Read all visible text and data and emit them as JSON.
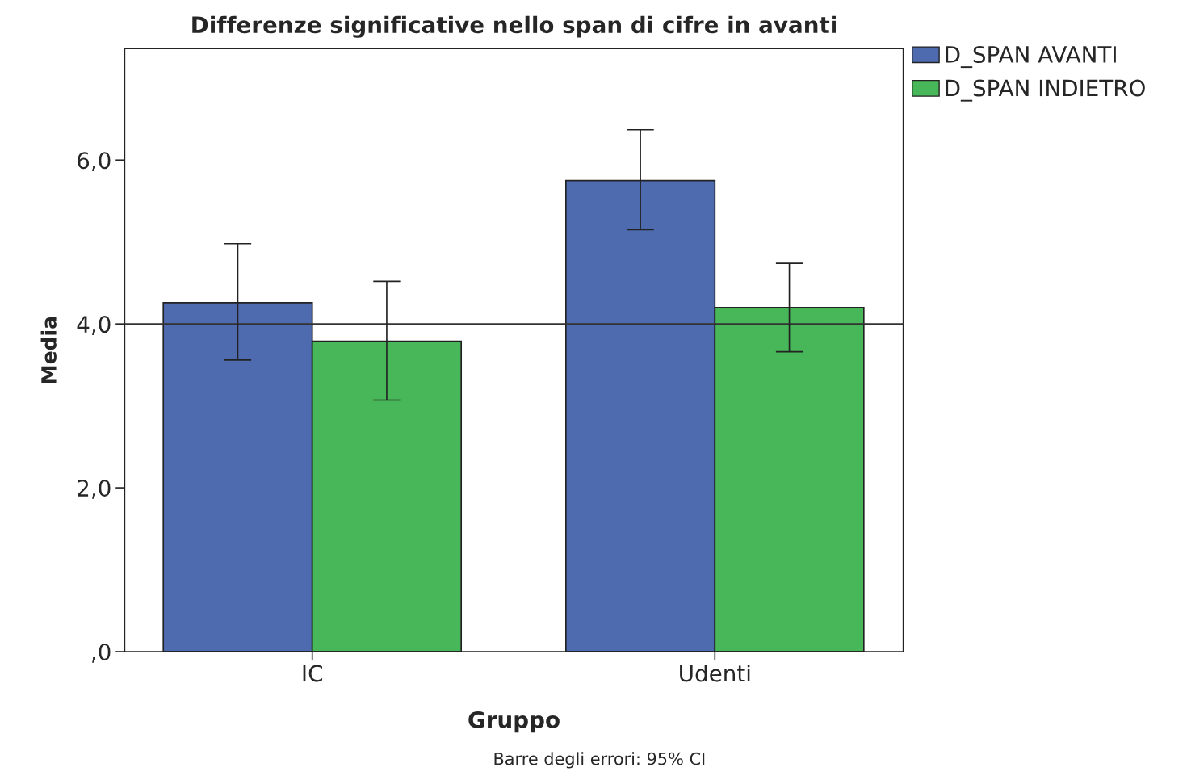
{
  "chart_data": {
    "type": "bar",
    "title": "Differenze significative nello span di cifre in avanti",
    "xlabel": "Gruppo",
    "ylabel": "Media",
    "categories": [
      "IC",
      "Udenti"
    ],
    "series": [
      {
        "name": "D_SPAN AVANTI",
        "color": "#4f6bb0",
        "values": [
          4.26,
          5.75
        ],
        "errors": [
          [
            3.56,
            4.98
          ],
          [
            5.15,
            6.37
          ]
        ]
      },
      {
        "name": "D_SPAN INDIETRO",
        "color": "#47b75a",
        "values": [
          3.79,
          4.2
        ],
        "errors": [
          [
            3.07,
            4.52
          ],
          [
            3.66,
            4.74
          ]
        ]
      }
    ],
    "ylim": [
      0,
      7.36
    ],
    "yticks": [
      {
        "value": 0,
        "label": ",0"
      },
      {
        "value": 2,
        "label": "2,0"
      },
      {
        "value": 4,
        "label": "4,0"
      },
      {
        "value": 6,
        "label": "6,0"
      }
    ],
    "ref_lines": [
      {
        "axis": "y",
        "value": 4,
        "color": "#333333"
      }
    ],
    "annotations": [
      "Barre degli errori: 95% CI"
    ],
    "legend": "top right",
    "grid": false
  }
}
